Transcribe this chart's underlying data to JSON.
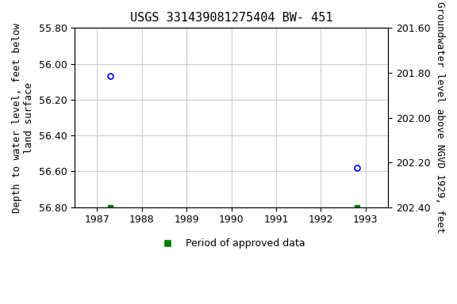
{
  "title": "USGS 331439081275404 BW- 451",
  "ylabel_left": "Depth to water level, feet below\nland surface",
  "ylabel_right": "Groundwater level above NGVD 1929, feet",
  "ylim_left": [
    55.8,
    56.8
  ],
  "ylim_right": [
    202.4,
    201.6
  ],
  "xlim": [
    1986.5,
    1993.5
  ],
  "xticks": [
    1987,
    1988,
    1989,
    1990,
    1991,
    1992,
    1993
  ],
  "yticks_left": [
    55.8,
    56.0,
    56.2,
    56.4,
    56.6,
    56.8
  ],
  "yticks_right": [
    202.4,
    202.2,
    202.0,
    201.8,
    201.6
  ],
  "blue_points_x": [
    1987.3,
    1992.8
  ],
  "blue_points_y": [
    56.07,
    56.58
  ],
  "green_points_x": [
    1987.3,
    1992.8
  ],
  "green_points_y": [
    56.8,
    56.8
  ],
  "background_color": "#ffffff",
  "grid_color": "#cccccc",
  "title_fontsize": 11,
  "axis_label_fontsize": 9,
  "tick_fontsize": 9,
  "legend_label": "Period of approved data"
}
